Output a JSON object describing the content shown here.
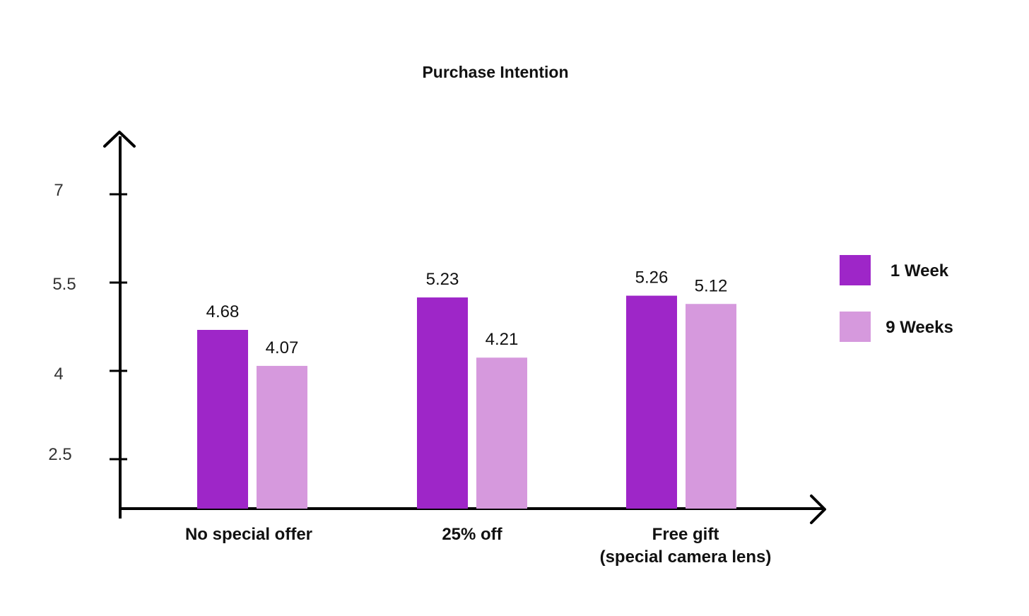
{
  "chart_data": {
    "type": "bar",
    "title": "Purchase Intention",
    "xlabel": "",
    "ylabel": "",
    "yticks": [
      "2.5",
      "4",
      "5.5",
      "7"
    ],
    "ylim": [
      1.65,
      8.1
    ],
    "grid": false,
    "legend_position": "right",
    "categories": [
      [
        "No special offer"
      ],
      [
        "25% off"
      ],
      [
        "Free gift",
        "(special camera lens)"
      ]
    ],
    "series": [
      {
        "name": "1 Week",
        "color": "#9E26C8",
        "values": [
          4.68,
          5.23,
          5.26
        ],
        "labels": [
          "4.68",
          "5.23",
          "5.26"
        ]
      },
      {
        "name": "9 Weeks",
        "color": "#D699DD",
        "values": [
          4.07,
          4.21,
          5.12
        ],
        "labels": [
          "4.07",
          "4.21",
          "5.12"
        ]
      }
    ]
  }
}
